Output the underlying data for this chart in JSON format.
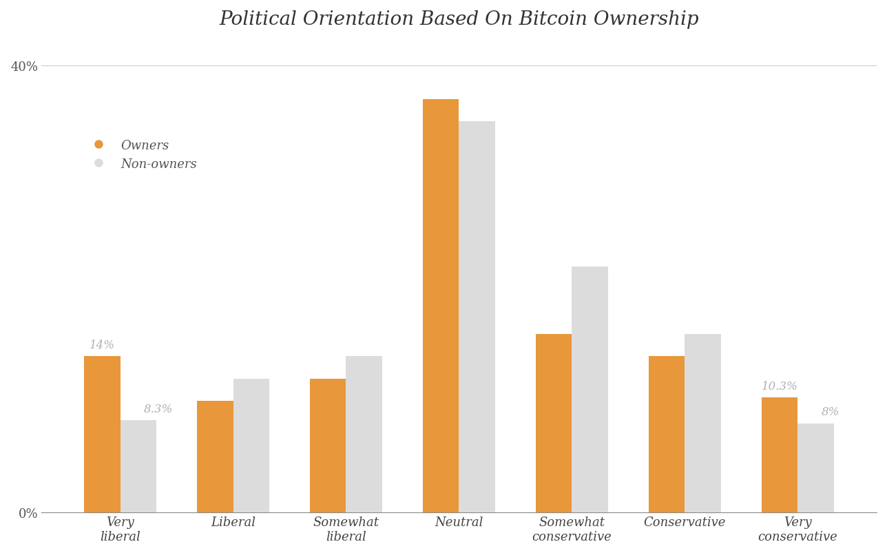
{
  "title": "Political Orientation Based On Bitcoin Ownership",
  "categories": [
    "Very\nliberal",
    "Liberal",
    "Somewhat\nliberal",
    "Neutral",
    "Somewhat\nconservative",
    "Conservative",
    "Very\nconservative"
  ],
  "owners": [
    14.0,
    10.0,
    12.0,
    37.0,
    16.0,
    14.0,
    10.3
  ],
  "non_owners": [
    8.3,
    12.0,
    14.0,
    35.0,
    22.0,
    16.0,
    8.0
  ],
  "owner_color": "#E8973A",
  "non_owner_color": "#DCDCDC",
  "annotation_color": "#B0B0B8",
  "ylim": [
    0,
    42
  ],
  "yticks": [
    0,
    40
  ],
  "ytick_labels": [
    "0%",
    "40%"
  ],
  "bar_width": 0.32,
  "background_color": "#FFFFFF",
  "title_fontsize": 20,
  "label_fontsize": 13,
  "tick_fontsize": 13,
  "annotation_fontsize": 12,
  "legend_labels": [
    "Owners",
    "Non-owners"
  ]
}
